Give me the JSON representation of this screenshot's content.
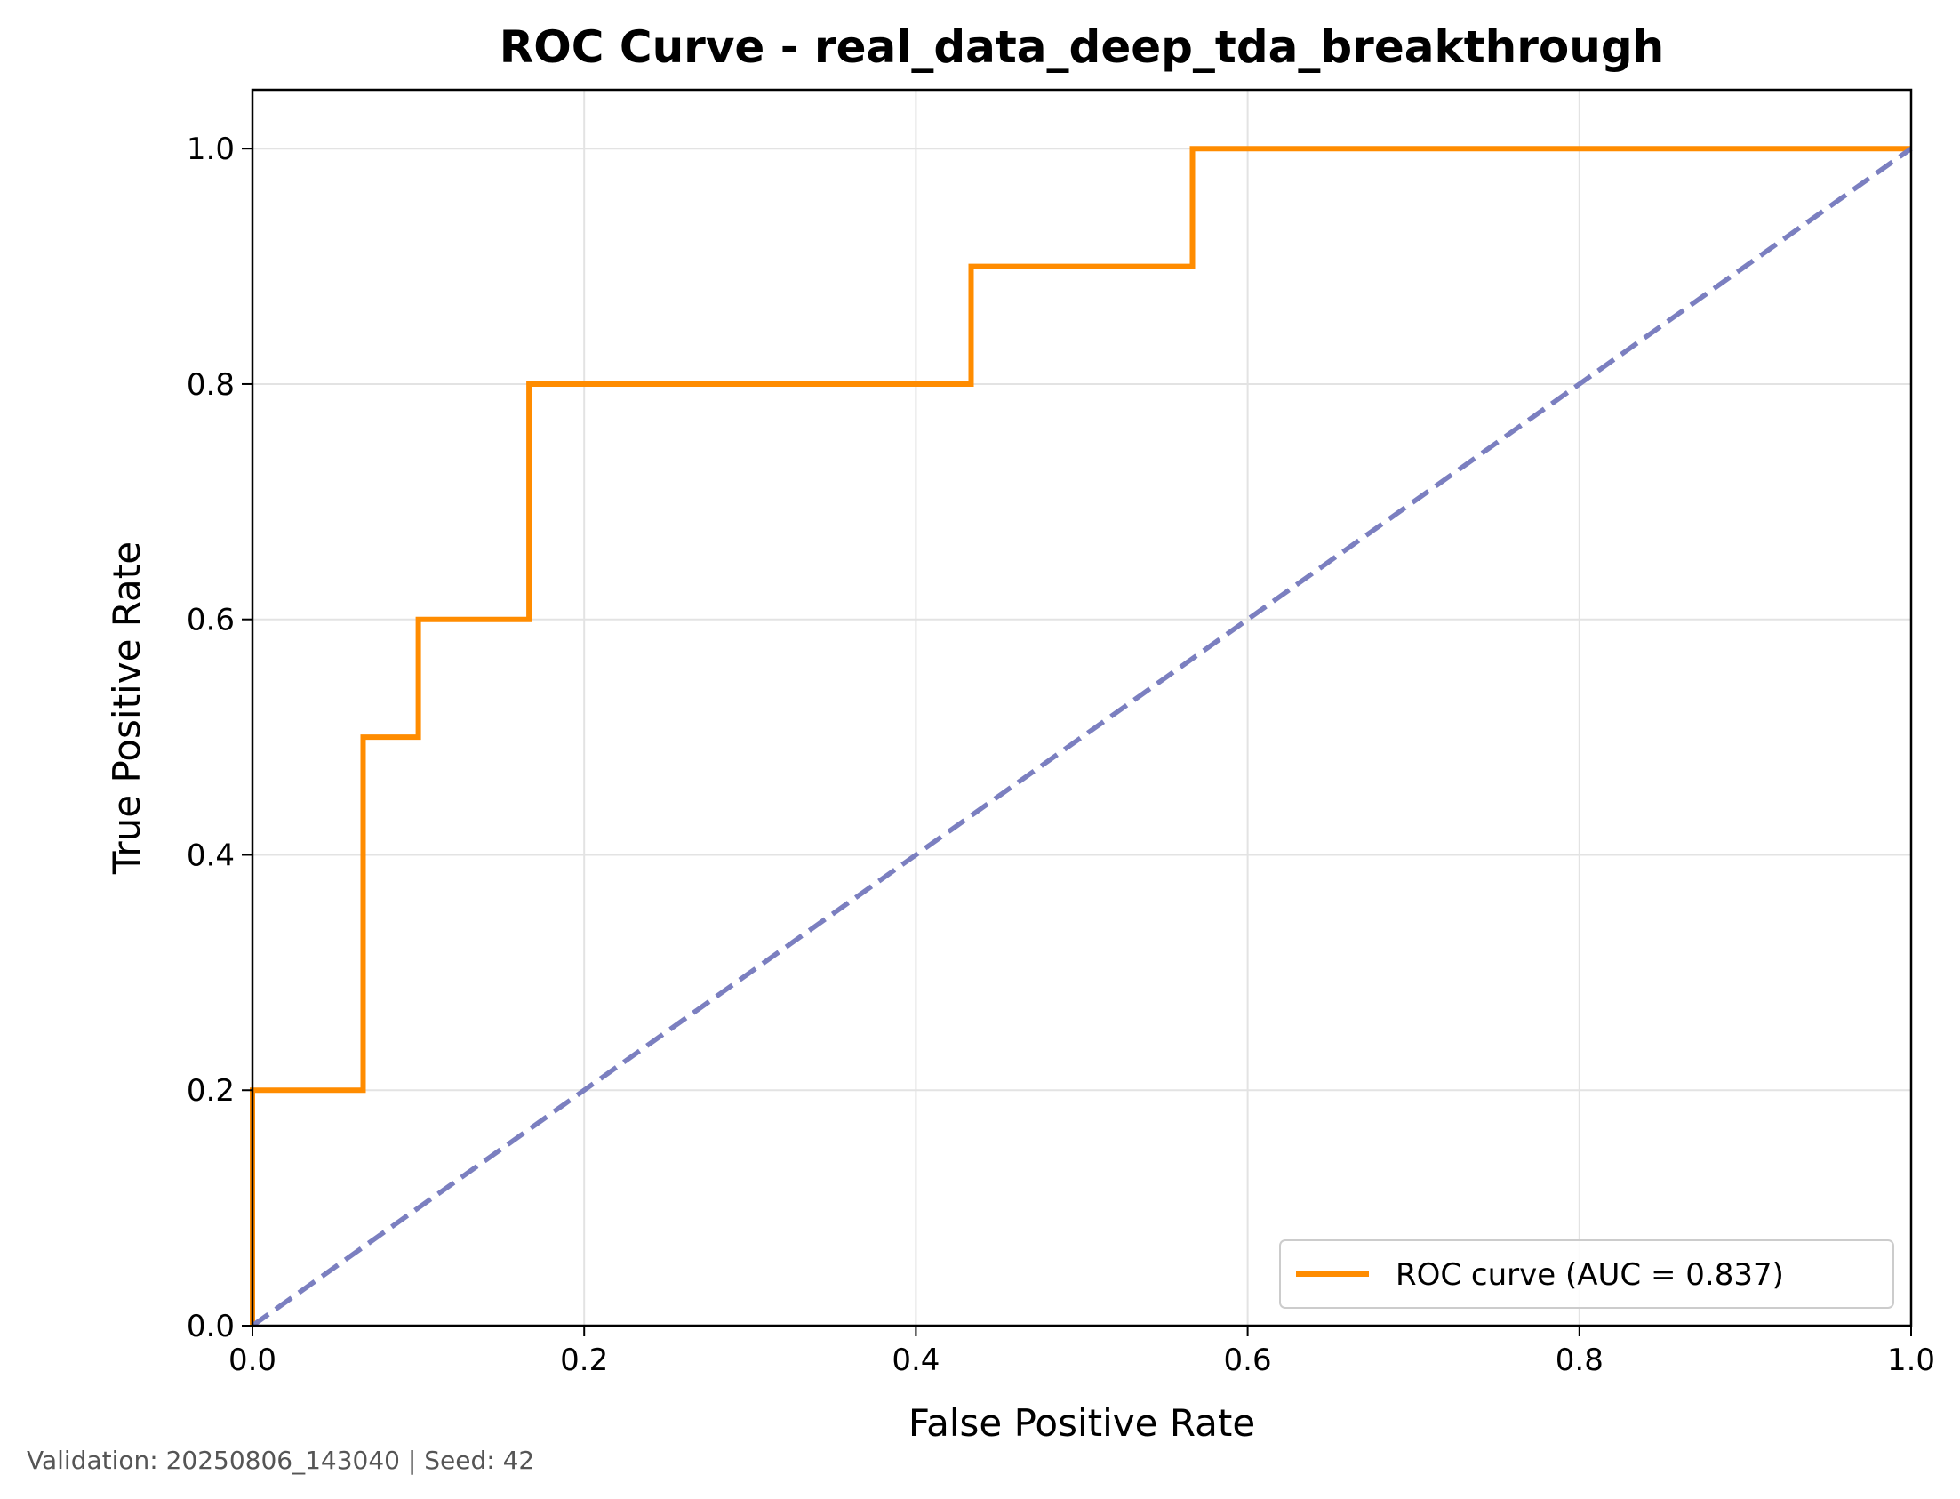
{
  "chart_data": {
    "type": "line",
    "title": "ROC Curve - real_data_deep_tda_breakthrough",
    "xlabel": "False Positive Rate",
    "ylabel": "True Positive Rate",
    "xlim": [
      0,
      1
    ],
    "ylim": [
      0,
      1.05
    ],
    "xticks": [
      0,
      0.2,
      0.4,
      0.6,
      0.8,
      1.0
    ],
    "yticks": [
      0,
      0.2,
      0.4,
      0.6,
      0.8,
      1.0
    ],
    "xtick_labels": [
      "0.0",
      "0.2",
      "0.4",
      "0.6",
      "0.8",
      "1.0"
    ],
    "ytick_labels": [
      "0.0",
      "0.2",
      "0.4",
      "0.6",
      "0.8",
      "1.0"
    ],
    "grid": true,
    "legend_position": "lower-right",
    "series": [
      {
        "name": "ROC curve (AUC = 0.837)",
        "color": "#ff8c00",
        "style": "solid",
        "x": [
          0,
          0,
          0.0667,
          0.0667,
          0.1,
          0.1,
          0.1667,
          0.1667,
          0.4333,
          0.4333,
          0.5667,
          0.5667,
          1.0
        ],
        "y": [
          0,
          0.2,
          0.2,
          0.5,
          0.5,
          0.6,
          0.6,
          0.8,
          0.8,
          0.9,
          0.9,
          1.0,
          1.0
        ]
      },
      {
        "color": "#7b7fc0",
        "style": "dashed",
        "x": [
          0,
          1
        ],
        "y": [
          0,
          1
        ]
      }
    ]
  },
  "footer": "Validation: 20250806_143040 | Seed: 42"
}
